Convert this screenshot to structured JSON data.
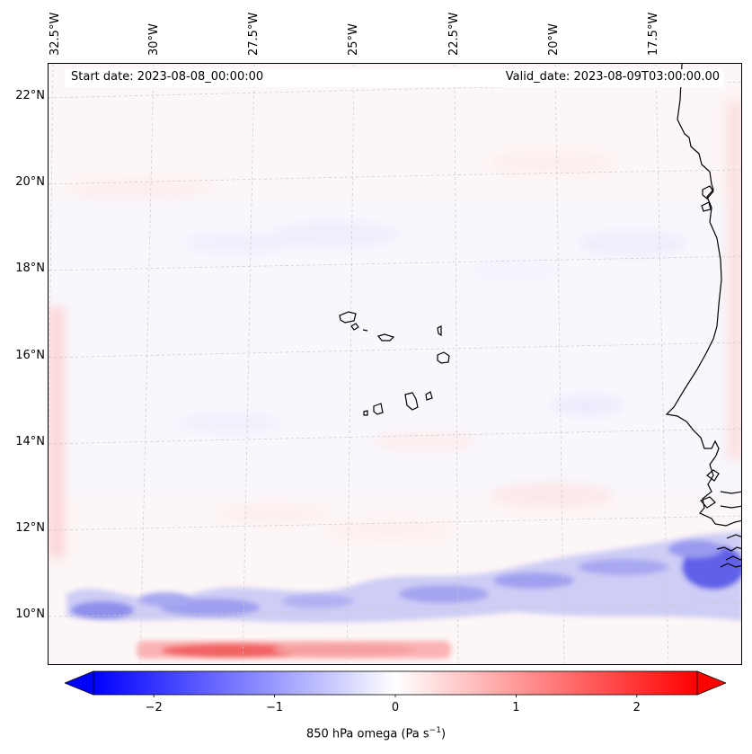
{
  "map": {
    "start_date_text": "Start date: 2023-08-08_00:00:00",
    "valid_date_text": "Valid_date: 2023-08-09T03:00:00.00",
    "longitude_labels": [
      "32.5°W",
      "30°W",
      "27.5°W",
      "25°W",
      "22.5°W",
      "20°W",
      "17.5°W"
    ],
    "latitude_labels": [
      "22°N",
      "20°N",
      "18°N",
      "16°N",
      "14°N",
      "12°N",
      "10°N"
    ],
    "colors": {
      "negative": "#0000ff",
      "positive": "#ff0000",
      "neutral": "#ffffff",
      "coastline": "#000000"
    }
  },
  "colorbar": {
    "ticks": [
      "−2",
      "−1",
      "0",
      "1",
      "2"
    ],
    "tick_values": [
      -2,
      -1,
      0,
      1,
      2
    ],
    "range": [
      -2.5,
      2.5
    ],
    "label_prefix": "850 hPa omega (Pa s",
    "label_exponent": "−1",
    "label_suffix": ")"
  }
}
